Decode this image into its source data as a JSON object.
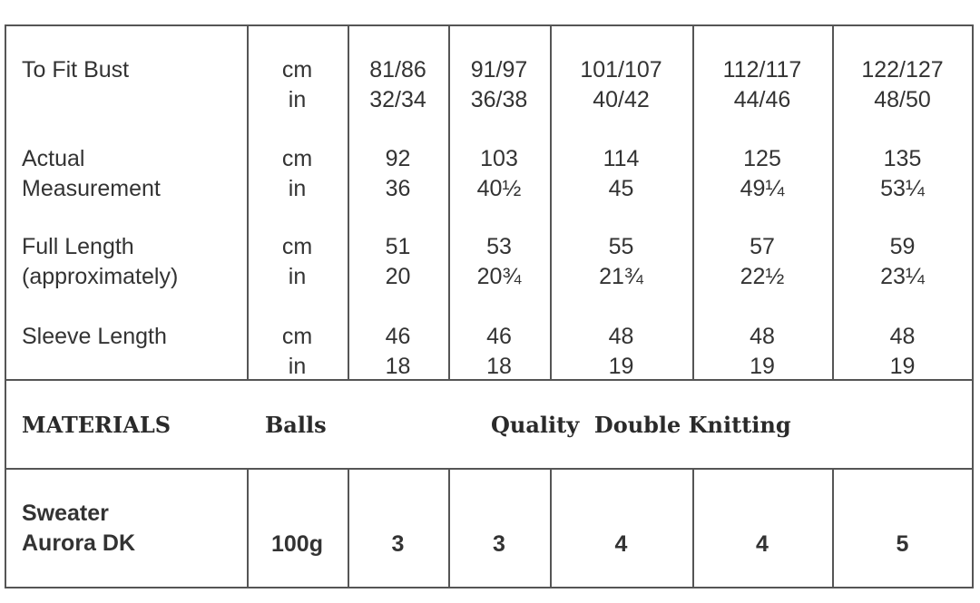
{
  "measurements": [
    {
      "label": [
        "To Fit Bust",
        ""
      ],
      "units": [
        "cm",
        "in"
      ],
      "values": [
        [
          "81/86",
          "32/34"
        ],
        [
          "91/97",
          "36/38"
        ],
        [
          "101/107",
          "40/42"
        ],
        [
          "112/117",
          "44/46"
        ],
        [
          "122/127",
          "48/50"
        ]
      ]
    },
    {
      "label": [
        "Actual",
        "Measurement"
      ],
      "units": [
        "cm",
        "in"
      ],
      "values": [
        [
          "92",
          "36"
        ],
        [
          "103",
          "40½"
        ],
        [
          "114",
          "45"
        ],
        [
          "125",
          "49¼"
        ],
        [
          "135",
          "53¼"
        ]
      ]
    },
    {
      "label": [
        "Full Length",
        "(approximately)"
      ],
      "units": [
        "cm",
        "in"
      ],
      "values": [
        [
          "51",
          "20"
        ],
        [
          "53",
          "20¾"
        ],
        [
          "55",
          "21¾"
        ],
        [
          "57",
          "22½"
        ],
        [
          "59",
          "23¼"
        ]
      ]
    },
    {
      "label": [
        "Sleeve Length",
        ""
      ],
      "units": [
        "cm",
        "in"
      ],
      "values": [
        [
          "46",
          "18"
        ],
        [
          "46",
          "18"
        ],
        [
          "48",
          "19"
        ],
        [
          "48",
          "19"
        ],
        [
          "48",
          "19"
        ]
      ]
    }
  ],
  "materials": {
    "heading": "MATERIALS",
    "balls_label": "Balls",
    "quality": "Quality  Double Knitting"
  },
  "yarn": {
    "name": [
      "Sweater",
      "Aurora DK"
    ],
    "weight": "100g",
    "balls": [
      "3",
      "3",
      "4",
      "4",
      "5"
    ]
  }
}
